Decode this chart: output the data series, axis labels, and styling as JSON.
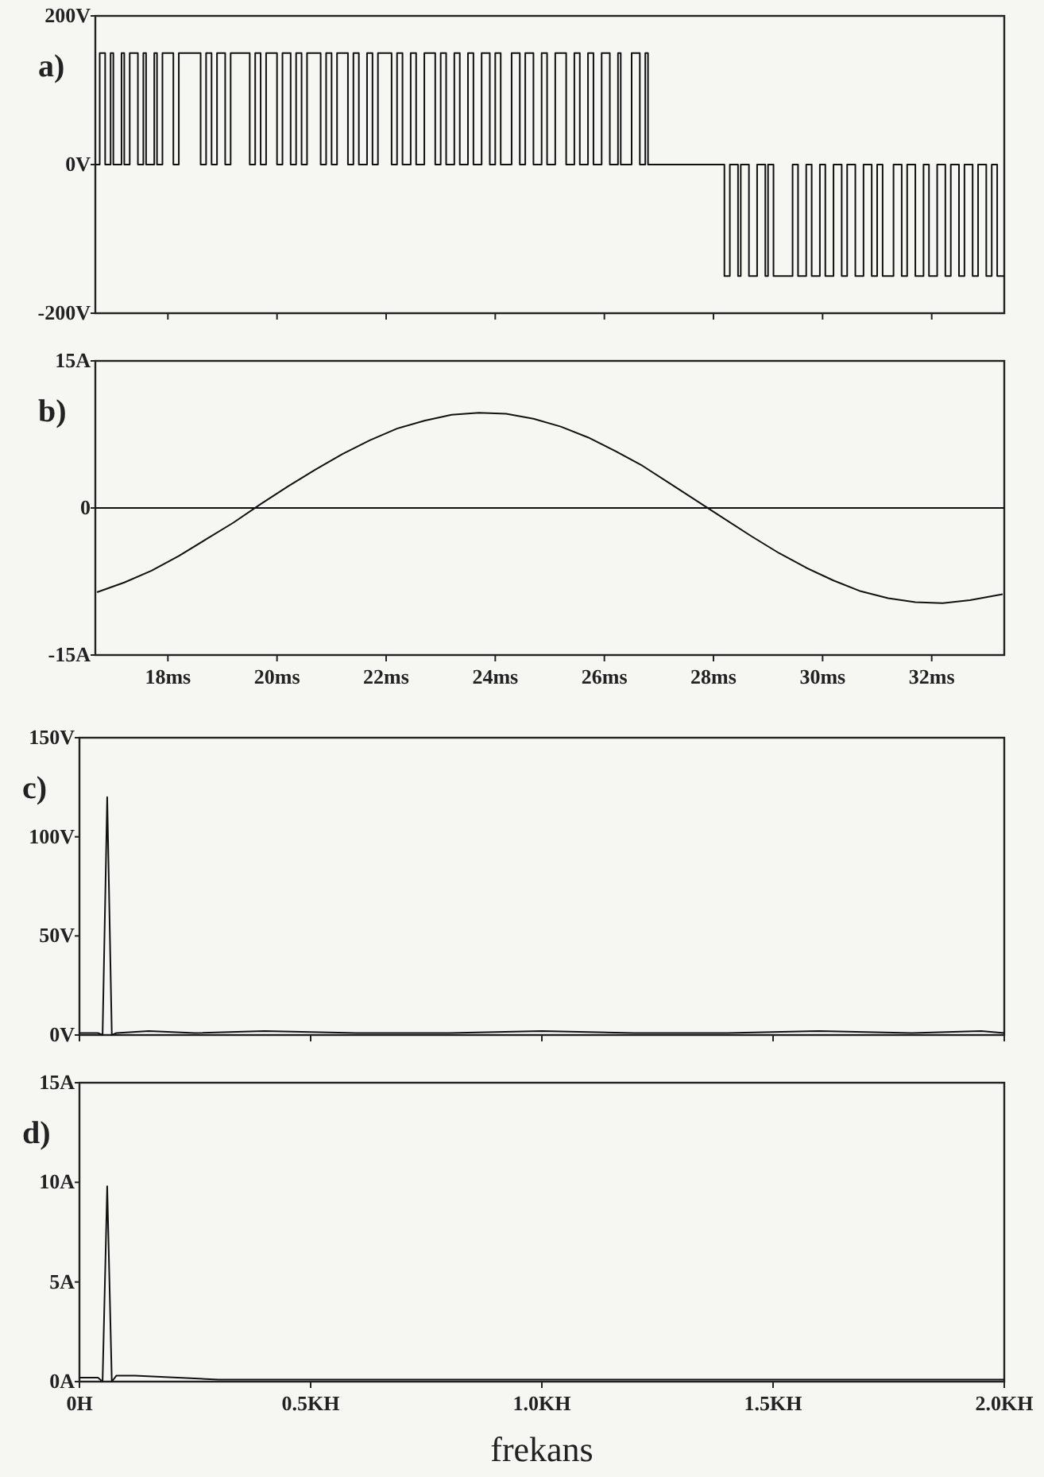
{
  "chart_data": [
    {
      "type": "step",
      "annotations": [
        "a)"
      ],
      "tick_labels": "y",
      "x": [
        16.67,
        16.75,
        16.85,
        16.95,
        17.0,
        17.15,
        17.2,
        17.3,
        17.45,
        17.55,
        17.6,
        17.75,
        17.8,
        17.9,
        18.1,
        18.2,
        18.6,
        18.7,
        18.8,
        18.9,
        19.05,
        19.15,
        19.5,
        19.6,
        19.7,
        19.8,
        20.0,
        20.1,
        20.25,
        20.35,
        20.45,
        20.55,
        20.8,
        20.9,
        21.0,
        21.1,
        21.3,
        21.4,
        21.5,
        21.65,
        21.75,
        21.85,
        22.1,
        22.2,
        22.3,
        22.45,
        22.55,
        22.7,
        22.9,
        23.0,
        23.1,
        23.25,
        23.35,
        23.5,
        23.6,
        23.75,
        23.9,
        24.0,
        24.1,
        24.3,
        24.45,
        24.55,
        24.7,
        24.85,
        24.95,
        25.1,
        25.3,
        25.45,
        25.55,
        25.7,
        25.8,
        25.95,
        26.1,
        26.25,
        26.3,
        26.5,
        26.65,
        26.75,
        26.8,
        28.2,
        28.3,
        28.45,
        28.5,
        28.65,
        28.8,
        28.95,
        29.0,
        29.1,
        29.45,
        29.55,
        29.7,
        29.8,
        29.95,
        30.05,
        30.2,
        30.35,
        30.45,
        30.6,
        30.75,
        30.9,
        31.0,
        31.1,
        31.3,
        31.45,
        31.55,
        31.7,
        31.85,
        31.95,
        32.1,
        32.25,
        32.35,
        32.5,
        32.6,
        32.75,
        32.85,
        33.0,
        33.1,
        33.2,
        33.33
      ],
      "series": [
        {
          "color": "#111111",
          "values": [
            0,
            150,
            0,
            150,
            0,
            150,
            0,
            150,
            0,
            150,
            0,
            150,
            0,
            150,
            0,
            150,
            0,
            150,
            0,
            150,
            0,
            150,
            0,
            150,
            0,
            150,
            0,
            150,
            0,
            150,
            0,
            150,
            0,
            150,
            0,
            150,
            0,
            150,
            0,
            150,
            0,
            150,
            0,
            150,
            0,
            150,
            0,
            150,
            0,
            150,
            0,
            150,
            0,
            150,
            0,
            150,
            0,
            150,
            0,
            150,
            0,
            150,
            0,
            150,
            0,
            150,
            0,
            150,
            0,
            150,
            0,
            150,
            0,
            150,
            0,
            150,
            0,
            150,
            0,
            -150,
            0,
            -150,
            0,
            -150,
            0,
            -150,
            0,
            -150,
            0,
            -150,
            0,
            -150,
            0,
            -150,
            0,
            -150,
            0,
            -150,
            0,
            -150,
            0,
            -150,
            0,
            -150,
            0,
            -150,
            0,
            -150,
            0,
            -150,
            0,
            -150,
            0,
            -150,
            0,
            -150,
            0,
            -150,
            -150
          ]
        }
      ],
      "xlim": [
        16.67,
        33.33
      ],
      "xticks": [
        {
          "value": 18,
          "label": null
        },
        {
          "value": 20,
          "label": null
        },
        {
          "value": 22,
          "label": null
        },
        {
          "value": 24,
          "label": null
        },
        {
          "value": 26,
          "label": null
        },
        {
          "value": 28,
          "label": null
        },
        {
          "value": 30,
          "label": null
        },
        {
          "value": 32,
          "label": null
        }
      ],
      "ylim": [
        -200,
        200
      ],
      "yticks": [
        {
          "value": 200,
          "label": "200V"
        },
        {
          "value": 0,
          "label": "0V"
        },
        {
          "value": -200,
          "label": "-200V"
        }
      ]
    },
    {
      "type": "line",
      "annotations": [
        "b)"
      ],
      "x": [
        16.7,
        17.2,
        17.7,
        18.2,
        18.7,
        19.2,
        19.7,
        20.2,
        20.7,
        21.2,
        21.7,
        22.2,
        22.7,
        23.2,
        23.7,
        24.2,
        24.7,
        25.2,
        25.7,
        26.2,
        26.7,
        27.2,
        27.7,
        28.2,
        28.7,
        29.2,
        29.7,
        30.2,
        30.7,
        31.2,
        31.7,
        32.2,
        32.7,
        33.3
      ],
      "series": [
        {
          "color": "#111111",
          "values": [
            -8.6,
            -7.6,
            -6.4,
            -4.9,
            -3.2,
            -1.5,
            0.4,
            2.2,
            3.9,
            5.5,
            6.9,
            8.1,
            8.9,
            9.5,
            9.7,
            9.6,
            9.1,
            8.3,
            7.2,
            5.8,
            4.3,
            2.5,
            0.7,
            -1.1,
            -2.9,
            -4.6,
            -6.1,
            -7.4,
            -8.5,
            -9.2,
            -9.6,
            -9.7,
            -9.4,
            -8.8
          ]
        }
      ],
      "xlim": [
        16.67,
        33.33
      ],
      "xticks": [
        {
          "value": 18,
          "label": "18ms"
        },
        {
          "value": 20,
          "label": "20ms"
        },
        {
          "value": 22,
          "label": "22ms"
        },
        {
          "value": 24,
          "label": "24ms"
        },
        {
          "value": 26,
          "label": "26ms"
        },
        {
          "value": 28,
          "label": "28ms"
        },
        {
          "value": 30,
          "label": "30ms"
        },
        {
          "value": 32,
          "label": "32ms"
        }
      ],
      "ylim": [
        -15,
        15
      ],
      "yticks": [
        {
          "value": 15,
          "label": "15A"
        },
        0,
        {
          "value": -15,
          "label": "-15A"
        }
      ],
      "ref_lines": [
        {
          "axis": "y",
          "value": 0,
          "color": "#111111"
        }
      ]
    },
    {
      "type": "line",
      "annotations": [
        "c)"
      ],
      "tick_labels": "y",
      "x": [
        0,
        0.04,
        0.05,
        0.06,
        0.07,
        0.08,
        0.15,
        0.25,
        0.4,
        0.6,
        0.8,
        1.0,
        1.2,
        1.4,
        1.6,
        1.8,
        1.95,
        2.0
      ],
      "series": [
        {
          "color": "#111111",
          "values": [
            1,
            1,
            0,
            120,
            0,
            1,
            2,
            1,
            2,
            1,
            1,
            2,
            1,
            1,
            2,
            1,
            2,
            1
          ]
        }
      ],
      "xlim": [
        0,
        2
      ],
      "xticks": [
        {
          "value": 0,
          "label": null
        },
        {
          "value": 0.5,
          "label": null
        },
        {
          "value": 1,
          "label": null
        },
        {
          "value": 1.5,
          "label": null
        },
        {
          "value": 2,
          "label": null
        }
      ],
      "ylim": [
        0,
        150
      ],
      "yticks": [
        {
          "value": 150,
          "label": "150V"
        },
        {
          "value": 100,
          "label": "100V"
        },
        {
          "value": 50,
          "label": "50V"
        },
        {
          "value": 0,
          "label": "0V"
        }
      ]
    },
    {
      "type": "line",
      "annotations": [
        "d)"
      ],
      "xlabel": "frekans",
      "x": [
        0,
        0.04,
        0.05,
        0.06,
        0.07,
        0.08,
        0.12,
        0.3,
        0.6,
        1.0,
        1.4,
        1.8,
        2.0
      ],
      "series": [
        {
          "color": "#111111",
          "values": [
            0.2,
            0.2,
            0,
            9.8,
            0,
            0.3,
            0.3,
            0.1,
            0.1,
            0.1,
            0.1,
            0.1,
            0.1
          ]
        }
      ],
      "xlim": [
        0,
        2
      ],
      "xticks": [
        {
          "value": 0,
          "label": "0H"
        },
        {
          "value": 0.5,
          "label": "0.5KH"
        },
        {
          "value": 1,
          "label": "1.0KH"
        },
        {
          "value": 1.5,
          "label": "1.5KH"
        },
        {
          "value": 2,
          "label": "2.0KH"
        }
      ],
      "ylim": [
        0,
        15
      ],
      "yticks": [
        {
          "value": 15,
          "label": "15A"
        },
        {
          "value": 10,
          "label": "10A"
        },
        {
          "value": 5,
          "label": "5A"
        },
        {
          "value": 0,
          "label": "0A"
        }
      ]
    }
  ]
}
